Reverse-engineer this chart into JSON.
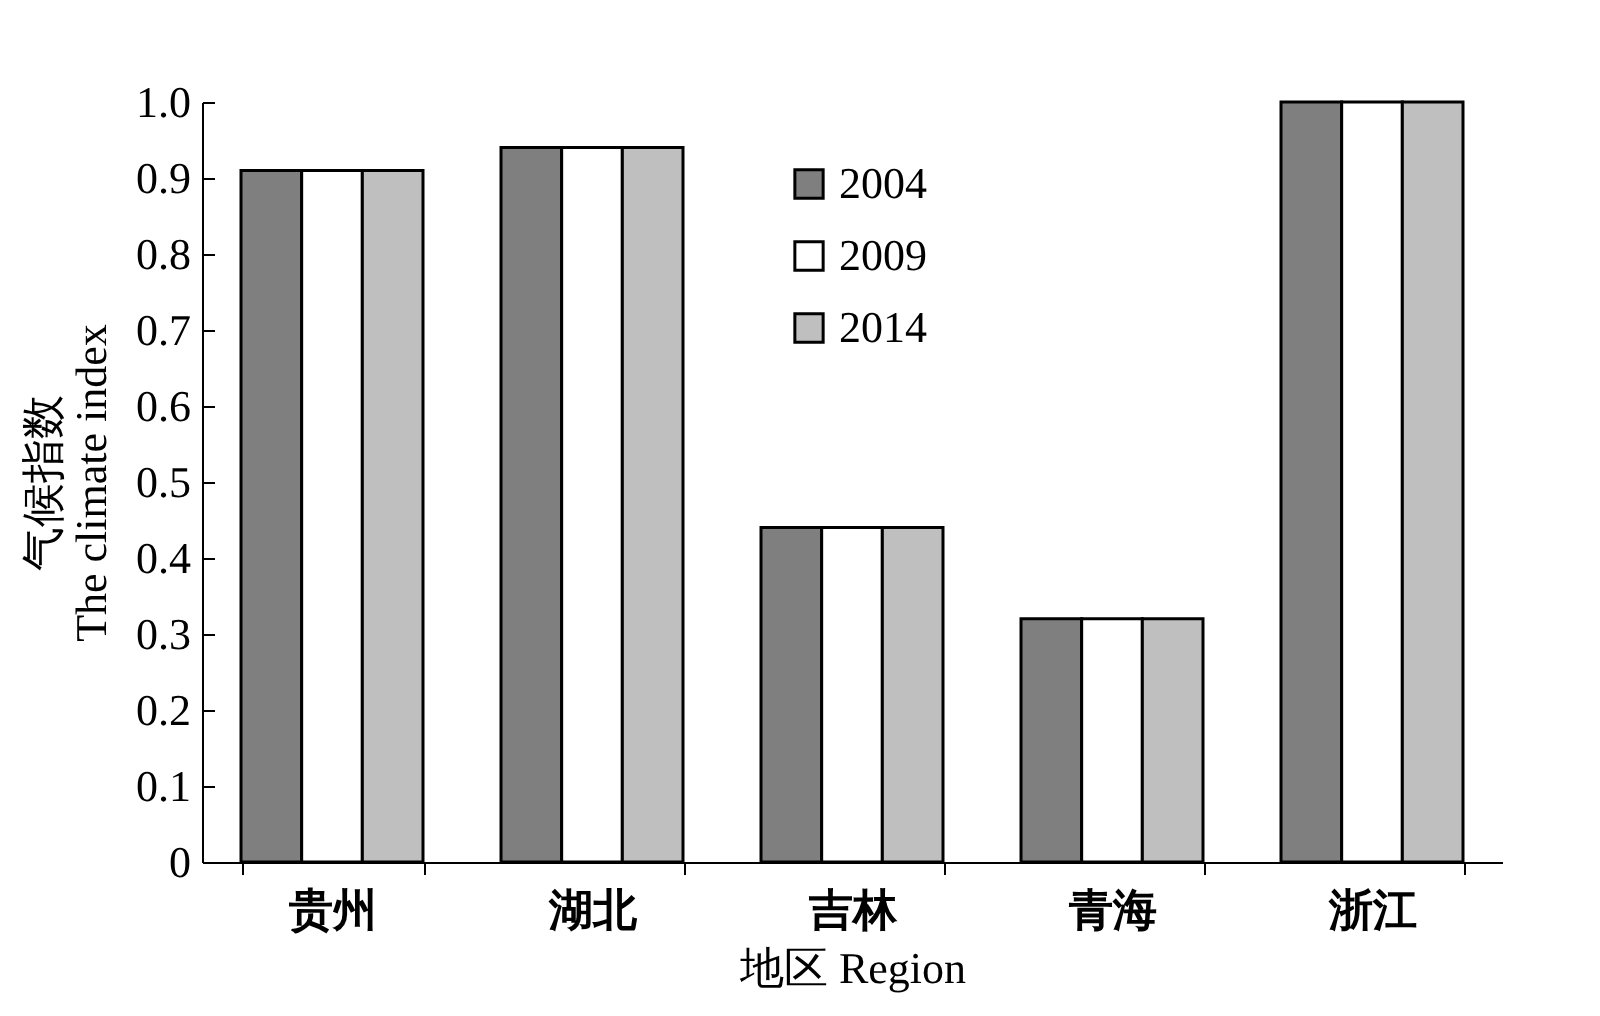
{
  "chart_data": {
    "type": "bar",
    "xlabel": "地区 Region",
    "ylabel": "气候指数\nThe climate index",
    "categories": [
      "贵州",
      "湖北",
      "吉林",
      "青海",
      "浙江"
    ],
    "series": [
      {
        "name": "2004",
        "color": "#7f7f7f",
        "values": [
          0.91,
          0.94,
          0.44,
          0.32,
          1.0
        ]
      },
      {
        "name": "2009",
        "color": "#ffffff",
        "values": [
          0.91,
          0.94,
          0.44,
          0.32,
          1.0
        ]
      },
      {
        "name": "2014",
        "color": "#bfbfbf",
        "values": [
          0.91,
          0.94,
          0.44,
          0.32,
          1.0
        ]
      }
    ],
    "ylim": [
      0,
      1.0
    ],
    "yticks": [
      0,
      {
        "value": 0.1,
        "label": "0.1"
      },
      {
        "value": 0.2,
        "label": "0.2"
      },
      {
        "value": 0.3,
        "label": "0.3"
      },
      {
        "value": 0.4,
        "label": "0.4"
      },
      {
        "value": 0.5,
        "label": "0.5"
      },
      {
        "value": 0.6,
        "label": "0.6"
      },
      {
        "value": 0.7,
        "label": "0.7"
      },
      {
        "value": 0.8,
        "label": "0.8"
      },
      {
        "value": 0.9,
        "label": "0.9"
      },
      {
        "value": 1.0,
        "label": "1.0"
      }
    ],
    "grid": false,
    "legend": "top"
  }
}
